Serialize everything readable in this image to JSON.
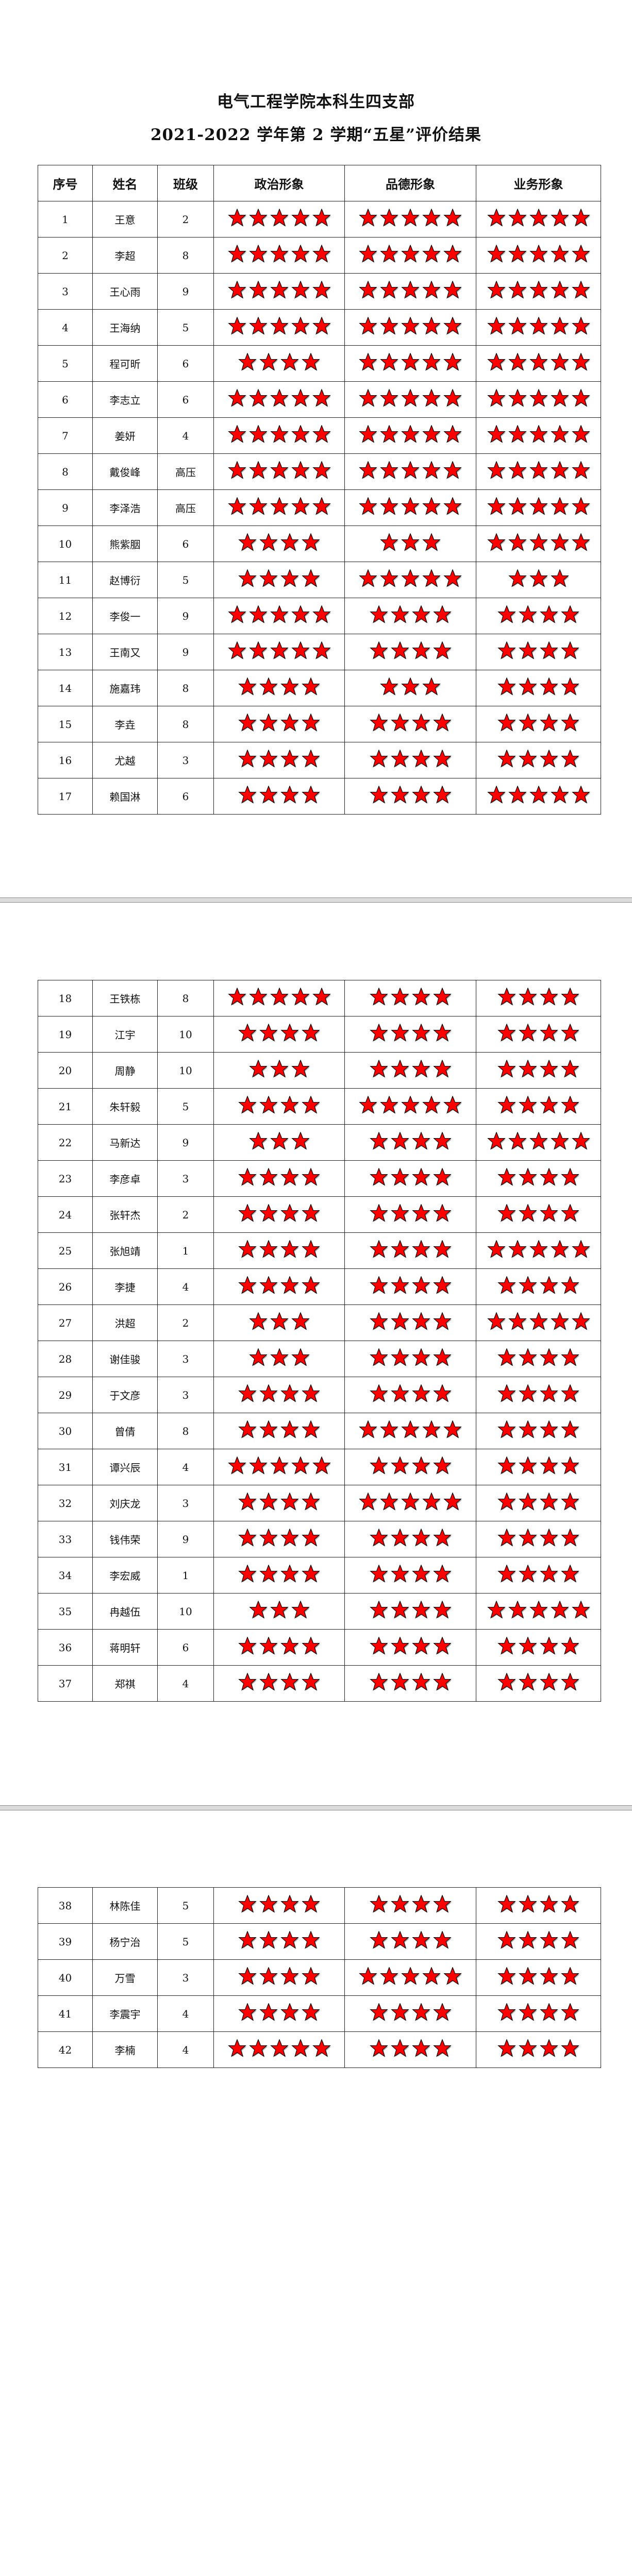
{
  "title": {
    "line1": "电气工程学院本科生四支部",
    "line2": "2021-2022 学年第 2 学期“五星”评价结果"
  },
  "table": {
    "headers": [
      "序号",
      "姓名",
      "班级",
      "政治形象",
      "品德形象",
      "业务形象"
    ],
    "star_icon": "red-star-icon",
    "star_color": "#ff0000",
    "rows": [
      {
        "no": "1",
        "name": "王意",
        "class": "2",
        "stars": [
          5,
          5,
          5
        ]
      },
      {
        "no": "2",
        "name": "李超",
        "class": "8",
        "stars": [
          5,
          5,
          5
        ]
      },
      {
        "no": "3",
        "name": "王心雨",
        "class": "9",
        "stars": [
          5,
          5,
          5
        ]
      },
      {
        "no": "4",
        "name": "王海纳",
        "class": "5",
        "stars": [
          5,
          5,
          5
        ]
      },
      {
        "no": "5",
        "name": "程可昕",
        "class": "6",
        "stars": [
          4,
          5,
          5
        ]
      },
      {
        "no": "6",
        "name": "李志立",
        "class": "6",
        "stars": [
          5,
          5,
          5
        ]
      },
      {
        "no": "7",
        "name": "姜妍",
        "class": "4",
        "stars": [
          5,
          5,
          5
        ]
      },
      {
        "no": "8",
        "name": "戴俊峰",
        "class": "高压",
        "stars": [
          5,
          5,
          5
        ]
      },
      {
        "no": "9",
        "name": "李泽浩",
        "class": "高压",
        "stars": [
          5,
          5,
          5
        ]
      },
      {
        "no": "10",
        "name": "熊紫胭",
        "class": "6",
        "stars": [
          4,
          3,
          5
        ]
      },
      {
        "no": "11",
        "name": "赵博衍",
        "class": "5",
        "stars": [
          4,
          5,
          3
        ]
      },
      {
        "no": "12",
        "name": "李俊一",
        "class": "9",
        "stars": [
          5,
          4,
          4
        ]
      },
      {
        "no": "13",
        "name": "王南又",
        "class": "9",
        "stars": [
          5,
          4,
          4
        ]
      },
      {
        "no": "14",
        "name": "施嘉玮",
        "class": "8",
        "stars": [
          4,
          3,
          4
        ]
      },
      {
        "no": "15",
        "name": "李垚",
        "class": "8",
        "stars": [
          4,
          4,
          4
        ]
      },
      {
        "no": "16",
        "name": "尤越",
        "class": "3",
        "stars": [
          4,
          4,
          4
        ]
      },
      {
        "no": "17",
        "name": "赖国淋",
        "class": "6",
        "stars": [
          4,
          4,
          5
        ]
      },
      {
        "no": "18",
        "name": "王铁栋",
        "class": "8",
        "stars": [
          5,
          4,
          4
        ]
      },
      {
        "no": "19",
        "name": "江宇",
        "class": "10",
        "stars": [
          4,
          4,
          4
        ]
      },
      {
        "no": "20",
        "name": "周静",
        "class": "10",
        "stars": [
          3,
          4,
          4
        ]
      },
      {
        "no": "21",
        "name": "朱轩毅",
        "class": "5",
        "stars": [
          4,
          5,
          4
        ]
      },
      {
        "no": "22",
        "name": "马新达",
        "class": "9",
        "stars": [
          3,
          4,
          5
        ]
      },
      {
        "no": "23",
        "name": "李彦卓",
        "class": "3",
        "stars": [
          4,
          4,
          4
        ]
      },
      {
        "no": "24",
        "name": "张轩杰",
        "class": "2",
        "stars": [
          4,
          4,
          4
        ]
      },
      {
        "no": "25",
        "name": "张旭靖",
        "class": "1",
        "stars": [
          4,
          4,
          5
        ]
      },
      {
        "no": "26",
        "name": "李捷",
        "class": "4",
        "stars": [
          4,
          4,
          4
        ]
      },
      {
        "no": "27",
        "name": "洪超",
        "class": "2",
        "stars": [
          3,
          4,
          5
        ]
      },
      {
        "no": "28",
        "name": "谢佳骏",
        "class": "3",
        "stars": [
          3,
          4,
          4
        ]
      },
      {
        "no": "29",
        "name": "于文彦",
        "class": "3",
        "stars": [
          4,
          4,
          4
        ]
      },
      {
        "no": "30",
        "name": "曾倩",
        "class": "8",
        "stars": [
          4,
          5,
          4
        ]
      },
      {
        "no": "31",
        "name": "谭兴辰",
        "class": "4",
        "stars": [
          5,
          4,
          4
        ]
      },
      {
        "no": "32",
        "name": "刘庆龙",
        "class": "3",
        "stars": [
          4,
          5,
          4
        ]
      },
      {
        "no": "33",
        "name": "钱伟荣",
        "class": "9",
        "stars": [
          4,
          4,
          4
        ]
      },
      {
        "no": "34",
        "name": "李宏威",
        "class": "1",
        "stars": [
          4,
          4,
          4
        ]
      },
      {
        "no": "35",
        "name": "冉越伍",
        "class": "10",
        "stars": [
          3,
          4,
          5
        ]
      },
      {
        "no": "36",
        "name": "蒋明轩",
        "class": "6",
        "stars": [
          4,
          4,
          4
        ]
      },
      {
        "no": "37",
        "name": "郑祺",
        "class": "4",
        "stars": [
          4,
          4,
          4
        ]
      },
      {
        "no": "38",
        "name": "林陈佳",
        "class": "5",
        "stars": [
          4,
          4,
          4
        ]
      },
      {
        "no": "39",
        "name": "杨宁治",
        "class": "5",
        "stars": [
          4,
          4,
          4
        ]
      },
      {
        "no": "40",
        "name": "万雪",
        "class": "3",
        "stars": [
          4,
          5,
          4
        ]
      },
      {
        "no": "41",
        "name": "李震宇",
        "class": "4",
        "stars": [
          4,
          4,
          4
        ]
      },
      {
        "no": "42",
        "name": "李楠",
        "class": "4",
        "stars": [
          5,
          4,
          4
        ]
      }
    ]
  }
}
